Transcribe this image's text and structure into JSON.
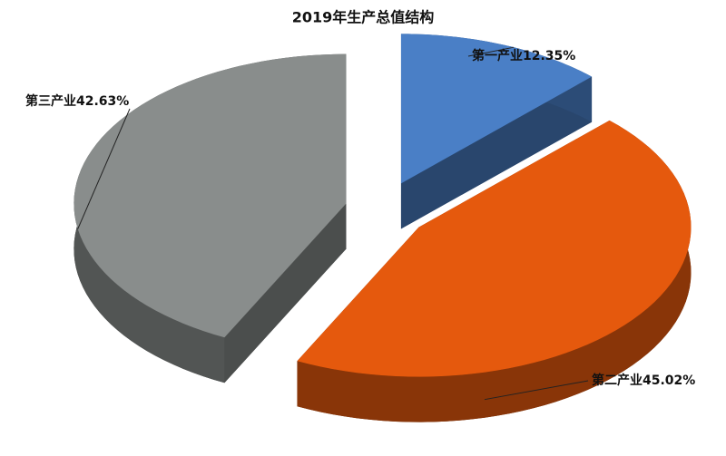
{
  "chart_data": {
    "type": "pie",
    "title": "2019年生产总值结构",
    "categories": [
      "第一产业",
      "第二产业",
      "第三产业"
    ],
    "values": [
      12.35,
      45.02,
      42.63
    ],
    "value_labels": [
      "12.35%",
      "45.02%",
      "42.63%"
    ],
    "colors": [
      "#4a7fc6",
      "#e5590d",
      "#898d8c"
    ]
  }
}
